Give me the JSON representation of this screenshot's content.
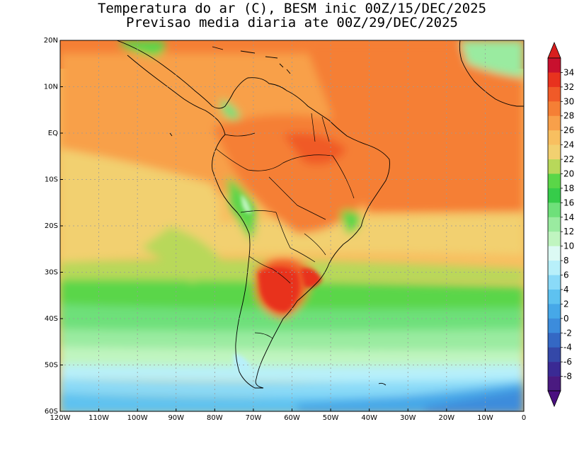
{
  "title": {
    "line1": "Temperatura do ar (C), BESM inic 00Z/15/DEC/2025",
    "line2": "Previsao media diaria ate 00Z/29/DEC/2025"
  },
  "map": {
    "lat_labels": [
      "20N",
      "10N",
      "EQ",
      "10S",
      "20S",
      "30S",
      "40S",
      "50S",
      "60S"
    ],
    "lon_labels": [
      "120W",
      "110W",
      "100W",
      "90W",
      "80W",
      "70W",
      "60W",
      "50W",
      "40W",
      "30W",
      "20W",
      "10W",
      "0"
    ],
    "lat_values": [
      20,
      10,
      0,
      -10,
      -20,
      -30,
      -40,
      -50,
      -60
    ],
    "lon_values": [
      -120,
      -110,
      -100,
      -90,
      -80,
      -70,
      -60,
      -50,
      -40,
      -30,
      -20,
      -10,
      0
    ]
  },
  "colorbar": {
    "labels": [
      "34",
      "32",
      "30",
      "28",
      "26",
      "24",
      "22",
      "20",
      "18",
      "16",
      "14",
      "12",
      "10",
      "8",
      "6",
      "4",
      "2",
      "0",
      "-2",
      "-4",
      "-6",
      "-8"
    ],
    "colors": [
      "#c8102e",
      "#e8321e",
      "#f05a28",
      "#f57f35",
      "#f8a04a",
      "#f8bf60",
      "#f2d070",
      "#b8d85a",
      "#5ad648",
      "#36cc4a",
      "#6ee07a",
      "#9aeba0",
      "#c0f5c0",
      "#dcfaf4",
      "#b8f0fa",
      "#8adaf8",
      "#5ec2f0",
      "#46a8e8",
      "#3c8cdc",
      "#3468c4",
      "#3448a8",
      "#3a2a94",
      "#4a1a80"
    ],
    "top_color": "#d81e1e",
    "bottom_color": "#4a1080"
  }
}
